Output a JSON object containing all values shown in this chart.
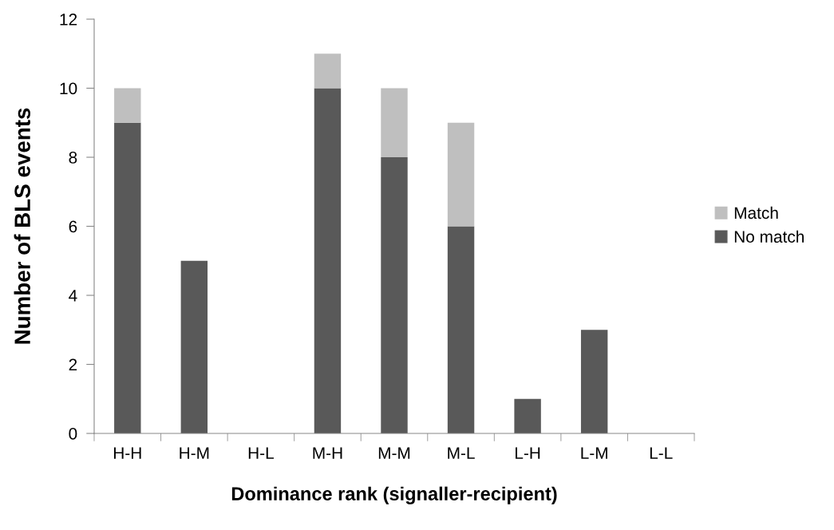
{
  "chart_data": {
    "type": "bar",
    "stacked": true,
    "xlabel": "Dominance rank (signaller-recipient)",
    "ylabel": "Number of BLS events",
    "categories": [
      "H-H",
      "H-M",
      "H-L",
      "M-H",
      "M-M",
      "M-L",
      "L-H",
      "L-M",
      "L-L"
    ],
    "series": [
      {
        "name": "No match",
        "color": "#595959",
        "values": [
          9,
          5,
          0,
          10,
          8,
          6,
          1,
          3,
          0
        ]
      },
      {
        "name": "Match",
        "color": "#bfbfbf",
        "values": [
          1,
          0,
          0,
          1,
          2,
          3,
          0,
          0,
          0
        ]
      }
    ],
    "ylim": [
      0,
      12
    ],
    "yticks": [
      0,
      2,
      4,
      6,
      8,
      10,
      12
    ],
    "grid": false,
    "legend": "right"
  }
}
